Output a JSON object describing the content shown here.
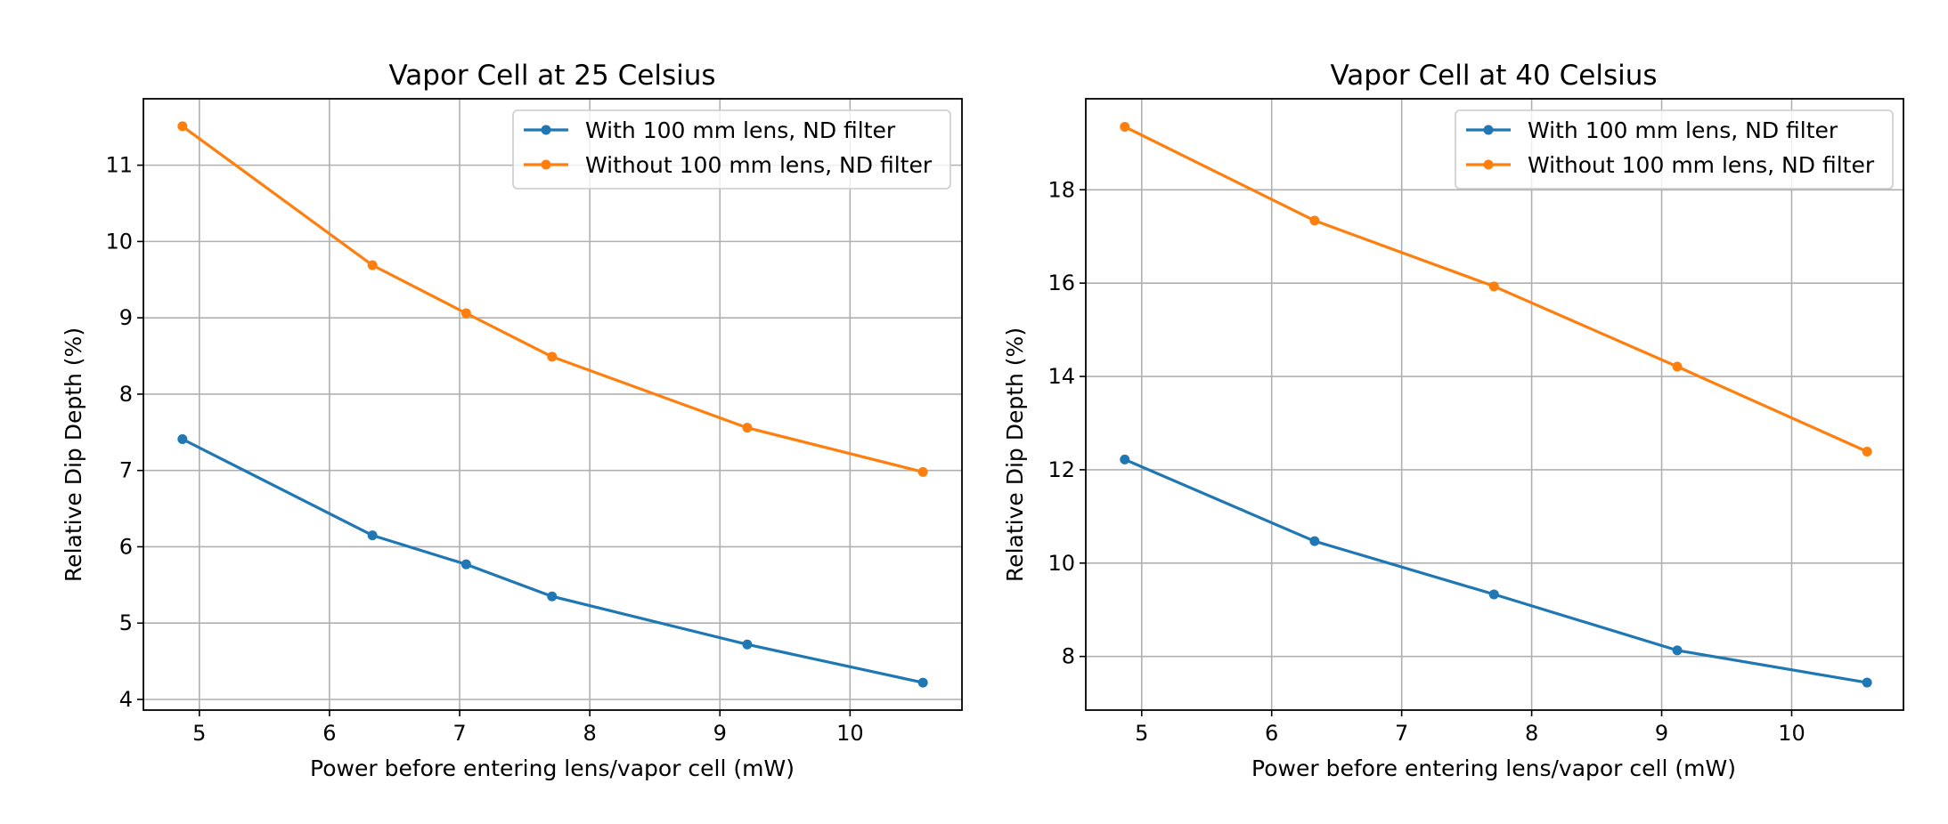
{
  "chart_data": [
    {
      "type": "line",
      "title": "Vapor Cell at 25 Celsius",
      "xlabel": "Power before entering lens/vapor cell (mW)",
      "ylabel": "Relative Dip Depth (%)",
      "xlim": [
        4.57,
        10.86
      ],
      "ylim": [
        3.86,
        11.87
      ],
      "xticks": [
        5,
        6,
        7,
        8,
        9,
        10
      ],
      "yticks": [
        4,
        5,
        6,
        7,
        8,
        9,
        10,
        11
      ],
      "grid": true,
      "legend_position": "upper right",
      "series": [
        {
          "name": "With 100 mm lens, ND filter",
          "color": "#1f77b4",
          "marker": "circle",
          "x": [
            4.87,
            6.33,
            7.05,
            7.71,
            9.21,
            10.56
          ],
          "y": [
            7.41,
            6.15,
            5.77,
            5.35,
            4.72,
            4.22
          ]
        },
        {
          "name": "Without 100 mm lens, ND filter",
          "color": "#ff7f0e",
          "marker": "circle",
          "x": [
            4.87,
            6.33,
            7.05,
            7.71,
            9.21,
            10.56
          ],
          "y": [
            11.51,
            9.69,
            9.06,
            8.49,
            7.56,
            6.98
          ]
        }
      ]
    },
    {
      "type": "line",
      "title": "Vapor Cell at 40 Celsius",
      "xlabel": "Power before entering lens/vapor cell (mW)",
      "ylabel": "Relative Dip Depth (%)",
      "xlim": [
        4.57,
        10.86
      ],
      "ylim": [
        6.85,
        19.95
      ],
      "xticks": [
        5,
        6,
        7,
        8,
        9,
        10
      ],
      "yticks": [
        8,
        10,
        12,
        14,
        16,
        18
      ],
      "grid": true,
      "legend_position": "upper right",
      "series": [
        {
          "name": "With 100 mm lens, ND filter",
          "color": "#1f77b4",
          "marker": "circle",
          "x": [
            4.87,
            6.33,
            7.71,
            9.12,
            10.58
          ],
          "y": [
            12.22,
            10.47,
            9.33,
            8.13,
            7.44
          ]
        },
        {
          "name": "Without 100 mm lens, ND filter",
          "color": "#ff7f0e",
          "marker": "circle",
          "x": [
            4.87,
            6.33,
            7.71,
            9.12,
            10.58
          ],
          "y": [
            19.35,
            17.34,
            15.93,
            14.21,
            12.39
          ]
        }
      ]
    }
  ]
}
